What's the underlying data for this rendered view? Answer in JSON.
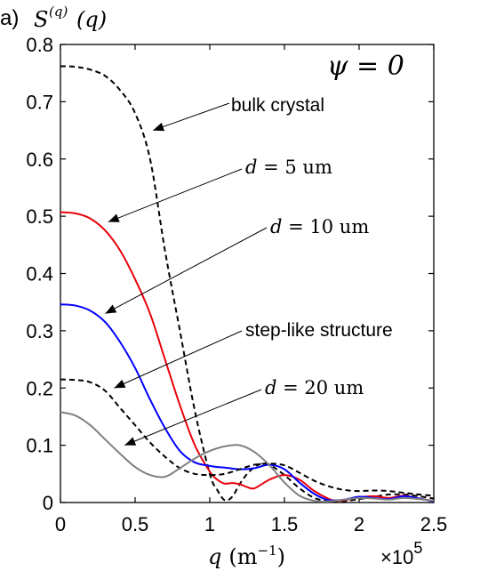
{
  "chart_data": {
    "type": "line",
    "panel_label": "a)",
    "ylabel_main": "S",
    "ylabel_sup": "(q)",
    "ylabel_arg": "(q)",
    "xlabel_var": "q",
    "xlabel_unit_open": "(m",
    "xlabel_unit_sup": "−1",
    "xlabel_unit_close": ")",
    "x_multiplier_base": "×10",
    "x_multiplier_exp": "5",
    "inset_label": "ψ = 0",
    "xlim": [
      0,
      2.5
    ],
    "ylim": [
      0,
      0.8
    ],
    "xticks": [
      "0",
      "0.5",
      "1",
      "1.5",
      "2",
      "2.5"
    ],
    "xtick_values": [
      0,
      0.5,
      1,
      1.5,
      2,
      2.5
    ],
    "yticks": [
      "0",
      "0.1",
      "0.2",
      "0.3",
      "0.4",
      "0.5",
      "0.6",
      "0.7",
      "0.8"
    ],
    "ytick_values": [
      0,
      0.1,
      0.2,
      0.3,
      0.4,
      0.5,
      0.6,
      0.7,
      0.8
    ],
    "colors": {
      "bulk": "#000000",
      "d5": "#e8000b",
      "d10": "#0000ff",
      "step": "#000000",
      "d20": "#808080"
    },
    "series": [
      {
        "key": "bulk",
        "dashed": true,
        "x": [
          0,
          0.1,
          0.2,
          0.3,
          0.4,
          0.5,
          0.6,
          0.7,
          0.8,
          0.9,
          1.0,
          1.05,
          1.1,
          1.15,
          1.2,
          1.25,
          1.3,
          1.35,
          1.4,
          1.5,
          1.6,
          1.7,
          1.8,
          1.85,
          1.9,
          2.0,
          2.1,
          2.2,
          2.3,
          2.4,
          2.5
        ],
        "y": [
          0.762,
          0.761,
          0.756,
          0.745,
          0.72,
          0.68,
          0.6,
          0.44,
          0.3,
          0.16,
          0.05,
          0.022,
          0.004,
          0.01,
          0.032,
          0.05,
          0.062,
          0.068,
          0.066,
          0.048,
          0.025,
          0.008,
          0.002,
          0.001,
          0.002,
          0.006,
          0.01,
          0.014,
          0.014,
          0.011,
          0.007
        ]
      },
      {
        "key": "d5",
        "dashed": false,
        "x": [
          0,
          0.1,
          0.2,
          0.3,
          0.4,
          0.5,
          0.6,
          0.7,
          0.8,
          0.9,
          1.0,
          1.05,
          1.1,
          1.15,
          1.2,
          1.25,
          1.3,
          1.4,
          1.5,
          1.6,
          1.7,
          1.8,
          1.85,
          1.9,
          2.0,
          2.1,
          2.2,
          2.3,
          2.4,
          2.5
        ],
        "y": [
          0.507,
          0.505,
          0.496,
          0.475,
          0.44,
          0.39,
          0.33,
          0.25,
          0.17,
          0.1,
          0.054,
          0.04,
          0.033,
          0.034,
          0.032,
          0.027,
          0.025,
          0.04,
          0.048,
          0.04,
          0.02,
          0.006,
          0.003,
          0.004,
          0.009,
          0.011,
          0.008,
          0.012,
          0.007,
          0.003
        ]
      },
      {
        "key": "d10",
        "dashed": false,
        "x": [
          0,
          0.1,
          0.2,
          0.3,
          0.4,
          0.5,
          0.6,
          0.7,
          0.8,
          0.9,
          1.0,
          1.05,
          1.1,
          1.2,
          1.3,
          1.4,
          1.5,
          1.6,
          1.7,
          1.8,
          1.9,
          2.0,
          2.1,
          2.2,
          2.3,
          2.4,
          2.5
        ],
        "y": [
          0.346,
          0.344,
          0.335,
          0.315,
          0.28,
          0.235,
          0.18,
          0.13,
          0.09,
          0.07,
          0.064,
          0.062,
          0.061,
          0.058,
          0.06,
          0.066,
          0.058,
          0.035,
          0.015,
          0.004,
          0.005,
          0.01,
          0.008,
          0.006,
          0.011,
          0.007,
          0.002
        ]
      },
      {
        "key": "step",
        "dashed": true,
        "x": [
          0,
          0.1,
          0.2,
          0.3,
          0.4,
          0.5,
          0.6,
          0.7,
          0.8,
          0.9,
          1.0,
          1.1,
          1.2,
          1.3,
          1.4,
          1.5,
          1.6,
          1.7,
          1.8,
          1.9,
          2.0,
          2.1,
          2.2,
          2.3,
          2.4,
          2.5
        ],
        "y": [
          0.215,
          0.214,
          0.21,
          0.195,
          0.165,
          0.135,
          0.105,
          0.08,
          0.06,
          0.05,
          0.048,
          0.05,
          0.058,
          0.066,
          0.068,
          0.065,
          0.052,
          0.038,
          0.028,
          0.022,
          0.02,
          0.021,
          0.02,
          0.017,
          0.014,
          0.012
        ]
      },
      {
        "key": "d20",
        "dashed": false,
        "x": [
          0,
          0.1,
          0.2,
          0.3,
          0.4,
          0.5,
          0.6,
          0.7,
          0.8,
          0.9,
          1.0,
          1.1,
          1.2,
          1.3,
          1.4,
          1.5,
          1.6,
          1.7,
          1.8,
          1.9,
          2.0,
          2.1,
          2.2,
          2.3,
          2.4,
          2.5
        ],
        "y": [
          0.158,
          0.152,
          0.135,
          0.11,
          0.085,
          0.062,
          0.048,
          0.045,
          0.06,
          0.077,
          0.09,
          0.098,
          0.1,
          0.088,
          0.065,
          0.035,
          0.012,
          0.003,
          0.002,
          0.005,
          0.008,
          0.007,
          0.005,
          0.008,
          0.006,
          0.003
        ]
      }
    ],
    "annotations": [
      {
        "key": "bulk",
        "text": "bulk crystal",
        "style": "sans",
        "arrow_to": [
          0.62,
          0.65
        ]
      },
      {
        "key": "d5",
        "text_var": "d",
        "text_rest": " = 5 um",
        "style": "serif",
        "arrow_to": [
          0.32,
          0.49
        ]
      },
      {
        "key": "d10",
        "text_var": "d",
        "text_rest": " = 10 um",
        "style": "serif",
        "arrow_to": [
          0.3,
          0.33
        ]
      },
      {
        "key": "step",
        "text": "step-like structure",
        "style": "sans",
        "arrow_to": [
          0.36,
          0.2
        ]
      },
      {
        "key": "d20",
        "text_var": "d",
        "text_rest": " = 20 um",
        "style": "serif",
        "arrow_to": [
          0.43,
          0.1
        ]
      }
    ]
  }
}
